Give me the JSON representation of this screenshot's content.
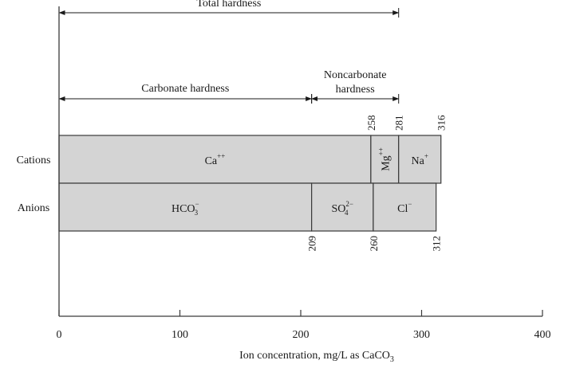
{
  "chart_data": {
    "type": "bar",
    "title": "",
    "xlabel": "Ion concentration, mg/L as CaCO",
    "xlabel_sub": "3",
    "xlim": [
      0,
      400
    ],
    "x_ticks": [
      "0",
      "100",
      "200",
      "300",
      "400"
    ],
    "rows": [
      {
        "label": "Cations",
        "segments": [
          {
            "ion": "Ca",
            "sup": "++",
            "sub": "",
            "start": 0,
            "end": 258,
            "vertical": false
          },
          {
            "ion": "Mg",
            "sup": "++",
            "sub": "",
            "start": 258,
            "end": 281,
            "vertical": true
          },
          {
            "ion": "Na",
            "sup": "+",
            "sub": "",
            "start": 281,
            "end": 316,
            "vertical": false
          }
        ],
        "boundary_labels": [
          "258",
          "281",
          "316"
        ],
        "boundary_values": [
          258,
          281,
          316
        ]
      },
      {
        "label": "Anions",
        "segments": [
          {
            "ion": "HCO",
            "sup": "−",
            "sub": "3",
            "start": 0,
            "end": 209,
            "vertical": false
          },
          {
            "ion": "SO",
            "sup": "2−",
            "sub": "4",
            "start": 209,
            "end": 260,
            "vertical": false
          },
          {
            "ion": "Cl",
            "sup": "−",
            "sub": "",
            "start": 260,
            "end": 312,
            "vertical": false
          }
        ],
        "boundary_labels": [
          "209",
          "260",
          "312"
        ],
        "boundary_values": [
          209,
          260,
          312
        ]
      }
    ],
    "annotations": [
      {
        "text": [
          "Total hardness"
        ],
        "start": 0,
        "end": 281
      },
      {
        "text": [
          "Carbonate hardness"
        ],
        "start": 0,
        "end": 209
      },
      {
        "text": [
          "Noncarbonate",
          "hardness"
        ],
        "start": 209,
        "end": 281
      }
    ],
    "colors": {
      "bar_fill": "#d4d4d4",
      "stroke": "#3a3a3a"
    }
  }
}
